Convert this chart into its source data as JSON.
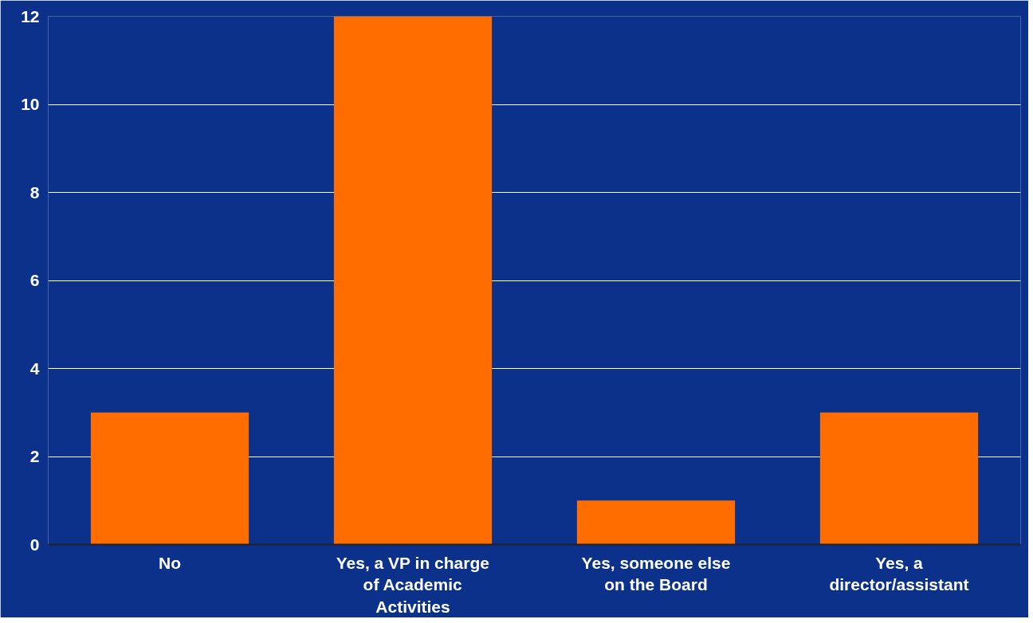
{
  "chart_data": {
    "type": "bar",
    "categories": [
      "No",
      "Yes, a VP in charge of Academic Activities",
      "Yes, someone else on the Board",
      "Yes, a director/assistant"
    ],
    "values": [
      3,
      12,
      1,
      3
    ],
    "color": "#ff6d00",
    "ylim": [
      0,
      12
    ],
    "yticks": [
      0,
      2,
      4,
      6,
      8,
      10,
      12
    ],
    "grid": "y"
  }
}
